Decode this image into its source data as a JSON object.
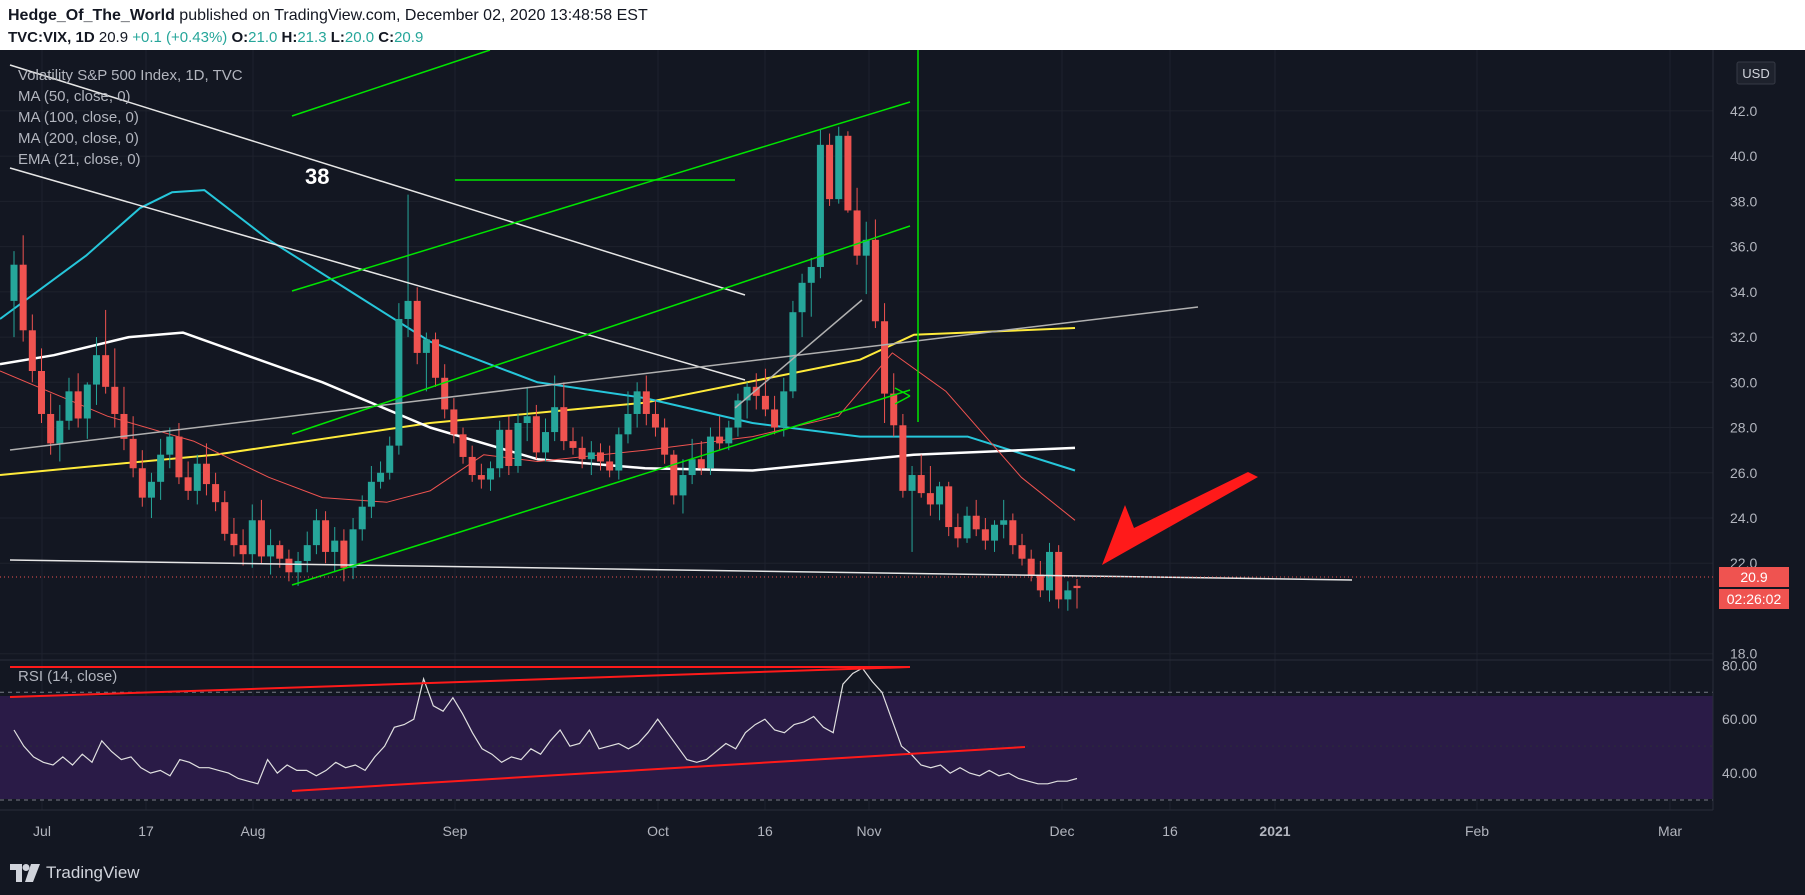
{
  "header": {
    "author": "Hedge_Of_The_World",
    "published": " published on TradingView.com, December 02, 2020 13:48:58 EST",
    "symbol": "TVC:VIX, 1D",
    "last": "20.9",
    "change": "+0.1 (+0.43%)",
    "open_label": "O:",
    "open": "21.0",
    "high_label": "H:",
    "high": "21.3",
    "low_label": "L:",
    "low": "20.0",
    "close_label": "C:",
    "close": "20.9"
  },
  "legend": {
    "title": "Volatility S&P 500 Index, 1D, TVC",
    "ma50": "MA (50, close, 0)",
    "ma100": "MA (100, close, 0)",
    "ma200": "MA (200, close, 0)",
    "ema21": "EMA (21, close, 0)",
    "rsi": "RSI (14, close)"
  },
  "annotation_38": "38",
  "currency_button": "USD",
  "price_badge": "20.9",
  "countdown_badge": "02:26:02",
  "footer_logo": "TradingView",
  "colors": {
    "background": "#131722",
    "up": "#26a69a",
    "down": "#ef5350",
    "ma50": "#ffffff",
    "ma100": "#26c6da",
    "ma200": "#ffeb3b",
    "ema21": "#ef5350",
    "trend_green": "#00e600",
    "trend_red": "#ff1a1a",
    "rsi_band": "#2a1b47"
  },
  "chart_data": {
    "type": "candlestick",
    "y_axis": {
      "ticks": [
        "42.0",
        "40.0",
        "38.0",
        "36.0",
        "34.0",
        "32.0",
        "30.0",
        "28.0",
        "26.0",
        "24.0",
        "22.0",
        "18.0"
      ],
      "ylim": [
        17.5,
        43.5
      ]
    },
    "rsi_axis": {
      "ticks": [
        "80.00",
        "60.00",
        "40.00"
      ],
      "ylim": [
        30,
        82
      ]
    },
    "x_axis": {
      "ticks": [
        "Jul",
        "17",
        "Aug",
        "Sep",
        "Oct",
        "16",
        "Nov",
        "Dec",
        "16",
        "2021",
        "Feb",
        "Mar"
      ]
    },
    "candles": [
      {
        "o": 33.6,
        "h": 35.8,
        "l": 32.0,
        "c": 35.2
      },
      {
        "o": 35.2,
        "h": 36.5,
        "l": 31.8,
        "c": 32.3
      },
      {
        "o": 32.3,
        "h": 33.0,
        "l": 30.0,
        "c": 30.5
      },
      {
        "o": 30.5,
        "h": 31.5,
        "l": 28.2,
        "c": 28.6
      },
      {
        "o": 28.6,
        "h": 29.5,
        "l": 26.8,
        "c": 27.3
      },
      {
        "o": 27.3,
        "h": 29.0,
        "l": 26.5,
        "c": 28.3
      },
      {
        "o": 28.3,
        "h": 30.2,
        "l": 27.9,
        "c": 29.6
      },
      {
        "o": 29.6,
        "h": 30.4,
        "l": 28.0,
        "c": 28.4
      },
      {
        "o": 28.4,
        "h": 30.0,
        "l": 27.5,
        "c": 29.9
      },
      {
        "o": 29.9,
        "h": 32.0,
        "l": 29.0,
        "c": 31.2
      },
      {
        "o": 31.2,
        "h": 33.2,
        "l": 29.5,
        "c": 29.8
      },
      {
        "o": 29.8,
        "h": 31.5,
        "l": 28.0,
        "c": 28.6
      },
      {
        "o": 28.6,
        "h": 29.8,
        "l": 27.0,
        "c": 27.5
      },
      {
        "o": 27.5,
        "h": 28.5,
        "l": 25.8,
        "c": 26.2
      },
      {
        "o": 26.2,
        "h": 27.0,
        "l": 24.5,
        "c": 24.9
      },
      {
        "o": 24.9,
        "h": 26.0,
        "l": 24.0,
        "c": 25.6
      },
      {
        "o": 25.6,
        "h": 27.5,
        "l": 24.8,
        "c": 26.8
      },
      {
        "o": 26.8,
        "h": 28.0,
        "l": 26.2,
        "c": 27.6
      },
      {
        "o": 27.6,
        "h": 28.2,
        "l": 25.5,
        "c": 25.8
      },
      {
        "o": 25.8,
        "h": 26.5,
        "l": 24.8,
        "c": 25.2
      },
      {
        "o": 25.2,
        "h": 26.8,
        "l": 24.6,
        "c": 26.4
      },
      {
        "o": 26.4,
        "h": 27.3,
        "l": 25.0,
        "c": 25.5
      },
      {
        "o": 25.5,
        "h": 26.0,
        "l": 24.3,
        "c": 24.7
      },
      {
        "o": 24.7,
        "h": 25.2,
        "l": 23.0,
        "c": 23.3
      },
      {
        "o": 23.3,
        "h": 24.0,
        "l": 22.3,
        "c": 22.8
      },
      {
        "o": 22.8,
        "h": 23.5,
        "l": 21.9,
        "c": 22.4
      },
      {
        "o": 22.4,
        "h": 24.6,
        "l": 21.8,
        "c": 23.9
      },
      {
        "o": 23.9,
        "h": 24.8,
        "l": 22.0,
        "c": 22.3
      },
      {
        "o": 22.3,
        "h": 23.5,
        "l": 21.5,
        "c": 22.8
      },
      {
        "o": 22.8,
        "h": 23.0,
        "l": 21.8,
        "c": 22.2
      },
      {
        "o": 22.2,
        "h": 22.6,
        "l": 21.2,
        "c": 21.6
      },
      {
        "o": 21.6,
        "h": 22.5,
        "l": 21.0,
        "c": 22.1
      },
      {
        "o": 22.1,
        "h": 23.4,
        "l": 21.6,
        "c": 22.8
      },
      {
        "o": 22.8,
        "h": 24.4,
        "l": 22.4,
        "c": 23.9
      },
      {
        "o": 23.9,
        "h": 24.3,
        "l": 22.0,
        "c": 22.5
      },
      {
        "o": 22.5,
        "h": 23.6,
        "l": 21.6,
        "c": 23.0
      },
      {
        "o": 23.0,
        "h": 23.5,
        "l": 21.2,
        "c": 21.8
      },
      {
        "o": 21.8,
        "h": 24.0,
        "l": 21.3,
        "c": 23.5
      },
      {
        "o": 23.5,
        "h": 25.0,
        "l": 23.0,
        "c": 24.5
      },
      {
        "o": 24.5,
        "h": 26.3,
        "l": 24.0,
        "c": 25.6
      },
      {
        "o": 25.6,
        "h": 26.5,
        "l": 25.3,
        "c": 26.0
      },
      {
        "o": 26.0,
        "h": 27.6,
        "l": 25.7,
        "c": 27.2
      },
      {
        "o": 27.2,
        "h": 33.5,
        "l": 26.8,
        "c": 32.8
      },
      {
        "o": 32.8,
        "h": 38.3,
        "l": 32.0,
        "c": 33.6
      },
      {
        "o": 33.6,
        "h": 34.2,
        "l": 30.8,
        "c": 31.3
      },
      {
        "o": 31.3,
        "h": 32.2,
        "l": 29.6,
        "c": 31.9
      },
      {
        "o": 31.9,
        "h": 32.2,
        "l": 29.8,
        "c": 30.2
      },
      {
        "o": 30.2,
        "h": 30.8,
        "l": 28.4,
        "c": 28.8
      },
      {
        "o": 28.8,
        "h": 29.3,
        "l": 27.3,
        "c": 27.7
      },
      {
        "o": 27.7,
        "h": 28.0,
        "l": 26.4,
        "c": 26.7
      },
      {
        "o": 26.7,
        "h": 27.2,
        "l": 25.6,
        "c": 25.9
      },
      {
        "o": 25.9,
        "h": 26.4,
        "l": 25.3,
        "c": 25.7
      },
      {
        "o": 25.7,
        "h": 26.5,
        "l": 25.2,
        "c": 26.2
      },
      {
        "o": 26.2,
        "h": 28.3,
        "l": 25.8,
        "c": 27.9
      },
      {
        "o": 27.9,
        "h": 28.5,
        "l": 25.9,
        "c": 26.3
      },
      {
        "o": 26.3,
        "h": 28.6,
        "l": 26.0,
        "c": 28.2
      },
      {
        "o": 28.2,
        "h": 29.8,
        "l": 27.4,
        "c": 28.5
      },
      {
        "o": 28.5,
        "h": 29.0,
        "l": 26.6,
        "c": 26.9
      },
      {
        "o": 26.9,
        "h": 28.4,
        "l": 26.5,
        "c": 27.8
      },
      {
        "o": 27.8,
        "h": 30.3,
        "l": 27.4,
        "c": 28.9
      },
      {
        "o": 28.9,
        "h": 30.0,
        "l": 27.0,
        "c": 27.4
      },
      {
        "o": 27.4,
        "h": 28.0,
        "l": 26.8,
        "c": 27.1
      },
      {
        "o": 27.1,
        "h": 27.6,
        "l": 26.2,
        "c": 26.6
      },
      {
        "o": 26.6,
        "h": 27.4,
        "l": 25.9,
        "c": 26.9
      },
      {
        "o": 26.9,
        "h": 27.3,
        "l": 26.1,
        "c": 26.5
      },
      {
        "o": 26.5,
        "h": 27.2,
        "l": 25.8,
        "c": 26.1
      },
      {
        "o": 26.1,
        "h": 28.0,
        "l": 25.7,
        "c": 27.7
      },
      {
        "o": 27.7,
        "h": 29.6,
        "l": 27.3,
        "c": 28.6
      },
      {
        "o": 28.6,
        "h": 30.0,
        "l": 28.0,
        "c": 29.6
      },
      {
        "o": 29.6,
        "h": 30.3,
        "l": 28.1,
        "c": 28.6
      },
      {
        "o": 28.6,
        "h": 29.2,
        "l": 27.6,
        "c": 28.0
      },
      {
        "o": 28.0,
        "h": 28.4,
        "l": 26.4,
        "c": 26.8
      },
      {
        "o": 26.8,
        "h": 27.0,
        "l": 24.6,
        "c": 25.0
      },
      {
        "o": 25.0,
        "h": 26.6,
        "l": 24.2,
        "c": 25.9
      },
      {
        "o": 25.9,
        "h": 27.5,
        "l": 25.5,
        "c": 26.6
      },
      {
        "o": 26.6,
        "h": 27.4,
        "l": 25.9,
        "c": 26.2
      },
      {
        "o": 26.2,
        "h": 28.0,
        "l": 25.9,
        "c": 27.6
      },
      {
        "o": 27.6,
        "h": 28.5,
        "l": 27.0,
        "c": 27.3
      },
      {
        "o": 27.3,
        "h": 28.3,
        "l": 27.0,
        "c": 28.0
      },
      {
        "o": 28.0,
        "h": 29.5,
        "l": 27.6,
        "c": 29.2
      },
      {
        "o": 29.2,
        "h": 30.0,
        "l": 28.4,
        "c": 29.8
      },
      {
        "o": 29.8,
        "h": 30.4,
        "l": 28.8,
        "c": 29.4
      },
      {
        "o": 29.4,
        "h": 30.6,
        "l": 28.5,
        "c": 28.8
      },
      {
        "o": 28.8,
        "h": 29.4,
        "l": 27.7,
        "c": 28.0
      },
      {
        "o": 28.0,
        "h": 30.2,
        "l": 27.6,
        "c": 29.6
      },
      {
        "o": 29.6,
        "h": 33.6,
        "l": 29.3,
        "c": 33.1
      },
      {
        "o": 33.1,
        "h": 34.8,
        "l": 32.0,
        "c": 34.4
      },
      {
        "o": 34.4,
        "h": 35.5,
        "l": 32.9,
        "c": 35.1
      },
      {
        "o": 35.1,
        "h": 41.2,
        "l": 34.6,
        "c": 40.5
      },
      {
        "o": 40.5,
        "h": 41.0,
        "l": 37.8,
        "c": 38.1
      },
      {
        "o": 38.1,
        "h": 41.3,
        "l": 37.9,
        "c": 40.9
      },
      {
        "o": 40.9,
        "h": 41.1,
        "l": 37.5,
        "c": 37.6
      },
      {
        "o": 37.6,
        "h": 38.6,
        "l": 35.2,
        "c": 35.6
      },
      {
        "o": 35.6,
        "h": 37.1,
        "l": 33.9,
        "c": 36.3
      },
      {
        "o": 36.3,
        "h": 37.2,
        "l": 32.4,
        "c": 32.7
      },
      {
        "o": 32.7,
        "h": 33.5,
        "l": 28.2,
        "c": 29.5
      },
      {
        "o": 29.5,
        "h": 30.4,
        "l": 27.6,
        "c": 28.1
      },
      {
        "o": 28.1,
        "h": 28.6,
        "l": 24.9,
        "c": 25.2
      },
      {
        "o": 25.2,
        "h": 26.3,
        "l": 22.5,
        "c": 25.9
      },
      {
        "o": 25.9,
        "h": 26.8,
        "l": 24.9,
        "c": 25.1
      },
      {
        "o": 25.1,
        "h": 26.3,
        "l": 24.1,
        "c": 24.6
      },
      {
        "o": 24.6,
        "h": 25.6,
        "l": 23.9,
        "c": 25.4
      },
      {
        "o": 25.4,
        "h": 25.6,
        "l": 23.2,
        "c": 23.6
      },
      {
        "o": 23.6,
        "h": 24.2,
        "l": 22.7,
        "c": 23.1
      },
      {
        "o": 23.1,
        "h": 24.5,
        "l": 22.9,
        "c": 24.1
      },
      {
        "o": 24.1,
        "h": 24.8,
        "l": 23.2,
        "c": 23.5
      },
      {
        "o": 23.5,
        "h": 24.0,
        "l": 22.6,
        "c": 23.0
      },
      {
        "o": 23.0,
        "h": 23.9,
        "l": 22.5,
        "c": 23.7
      },
      {
        "o": 23.7,
        "h": 24.8,
        "l": 23.1,
        "c": 23.9
      },
      {
        "o": 23.9,
        "h": 24.2,
        "l": 22.4,
        "c": 22.8
      },
      {
        "o": 22.8,
        "h": 23.3,
        "l": 21.9,
        "c": 22.2
      },
      {
        "o": 22.2,
        "h": 22.6,
        "l": 21.2,
        "c": 21.5
      },
      {
        "o": 21.5,
        "h": 22.1,
        "l": 20.5,
        "c": 20.8
      },
      {
        "o": 20.8,
        "h": 22.9,
        "l": 20.3,
        "c": 22.5
      },
      {
        "o": 22.5,
        "h": 22.8,
        "l": 20.0,
        "c": 20.4
      },
      {
        "o": 20.4,
        "h": 21.2,
        "l": 19.9,
        "c": 20.8
      },
      {
        "o": 21.0,
        "h": 21.3,
        "l": 20.0,
        "c": 20.9
      }
    ],
    "overlays": {
      "ma50": [
        [
          0,
          30.8
        ],
        [
          0.05,
          31.2
        ],
        [
          0.12,
          32.0
        ],
        [
          0.17,
          32.2
        ],
        [
          0.3,
          30.0
        ],
        [
          0.4,
          28.0
        ],
        [
          0.5,
          26.6
        ],
        [
          0.6,
          26.2
        ],
        [
          0.7,
          26.1
        ],
        [
          0.85,
          26.8
        ],
        [
          1,
          27.1
        ]
      ],
      "ma100": [
        [
          0,
          32.8
        ],
        [
          0.08,
          35.6
        ],
        [
          0.13,
          37.7
        ],
        [
          0.16,
          38.4
        ],
        [
          0.19,
          38.5
        ],
        [
          0.25,
          36.3
        ],
        [
          0.33,
          33.9
        ],
        [
          0.4,
          31.8
        ],
        [
          0.5,
          30.0
        ],
        [
          0.6,
          29.3
        ],
        [
          0.7,
          28.2
        ],
        [
          0.8,
          27.6
        ],
        [
          0.9,
          27.6
        ],
        [
          1,
          26.1
        ]
      ],
      "ma200": [
        [
          0,
          25.9
        ],
        [
          0.2,
          26.8
        ],
        [
          0.4,
          28.2
        ],
        [
          0.6,
          29.1
        ],
        [
          0.8,
          31.0
        ],
        [
          0.85,
          32.1
        ],
        [
          1,
          32.4
        ]
      ],
      "ema21": [
        [
          0,
          30.5
        ],
        [
          0.05,
          29.5
        ],
        [
          0.1,
          28.5
        ],
        [
          0.18,
          27.4
        ],
        [
          0.25,
          25.8
        ],
        [
          0.3,
          24.9
        ],
        [
          0.36,
          24.7
        ],
        [
          0.4,
          25.2
        ],
        [
          0.45,
          26.8
        ],
        [
          0.5,
          26.5
        ],
        [
          0.6,
          27.0
        ],
        [
          0.7,
          27.6
        ],
        [
          0.78,
          28.5
        ],
        [
          0.83,
          31.3
        ],
        [
          0.88,
          29.6
        ],
        [
          0.95,
          25.8
        ],
        [
          1,
          23.9
        ]
      ]
    },
    "rsi_values": [
      56,
      50,
      46,
      44,
      43,
      46,
      43,
      47,
      44,
      52,
      48,
      45,
      46,
      42,
      40,
      41,
      39,
      45,
      44,
      42,
      42,
      41,
      40,
      38,
      37,
      36,
      45,
      40,
      43,
      41,
      41,
      39,
      41,
      44,
      42,
      43,
      41,
      46,
      50,
      57,
      58,
      60,
      75,
      65,
      63,
      68,
      62,
      55,
      49,
      47,
      44,
      46,
      45,
      49,
      47,
      52,
      56,
      50,
      51,
      56,
      49,
      50,
      51,
      49,
      51,
      55,
      60,
      55,
      50,
      45,
      44,
      45,
      48,
      51,
      49,
      55,
      58,
      60,
      56,
      55,
      58,
      59,
      61,
      57,
      55,
      73,
      77,
      79,
      74,
      70,
      60,
      50,
      47,
      43,
      42,
      43,
      40,
      42,
      40,
      39,
      41,
      39,
      40,
      38,
      37,
      36,
      36,
      37,
      37,
      38
    ]
  }
}
